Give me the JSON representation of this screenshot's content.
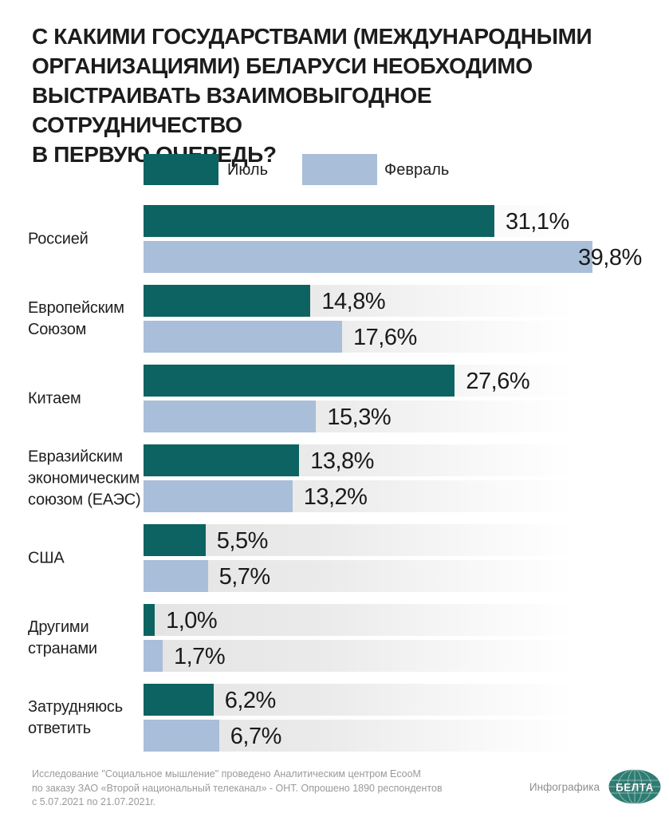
{
  "title": {
    "text": "С КАКИМИ ГОСУДАРСТВАМИ (МЕЖДУНАРОДНЫМИ\nОРГАНИЗАЦИЯМИ) БЕЛАРУСИ НЕОБХОДИМО\nВЫСТРАИВАТЬ ВЗАИМОВЫГОДНОЕ СОТРУДНИЧЕСТВО\nВ ПЕРВУЮ ОЧЕРЕДЬ?"
  },
  "chart_data": {
    "type": "bar",
    "orientation": "horizontal",
    "title": "С КАКИМИ ГОСУДАРСТВАМИ (МЕЖДУНАРОДНЫМИ ОРГАНИЗАЦИЯМИ) БЕЛАРУСИ НЕОБХОДИМО ВЫСТРАИВАТЬ ВЗАИМОВЫГОДНОЕ СОТРУДНИЧЕСТВО В ПЕРВУЮ ОЧЕРЕДЬ?",
    "categories": [
      "Россией",
      "Европейским Союзом",
      "Китаем",
      "Евразийским экономическим союзом (ЕАЭС)",
      "США",
      "Другими странами",
      "Затрудняюсь ответить"
    ],
    "categories_lines": [
      [
        "Россией"
      ],
      [
        "Европейским",
        "Союзом"
      ],
      [
        "Китаем"
      ],
      [
        "Евразийским",
        "экономическим",
        "союзом (ЕАЭС)"
      ],
      [
        "США"
      ],
      [
        "Другими",
        "странами"
      ],
      [
        "Затрудняюсь",
        "ответить"
      ]
    ],
    "series": [
      {
        "name": "Июль",
        "color": "#0d6361",
        "values": [
          31.1,
          14.8,
          27.6,
          13.8,
          5.5,
          1.0,
          6.2
        ],
        "display_values": [
          "31,1%",
          "14,8%",
          "27,6%",
          "13,8%",
          "5,5%",
          "1,0%",
          "6,2%"
        ]
      },
      {
        "name": "Февраль",
        "color": "#a9bed8",
        "values": [
          39.8,
          17.6,
          15.3,
          13.2,
          5.7,
          1.7,
          6.7
        ],
        "display_values": [
          "39,8%",
          "17,6%",
          "15,3%",
          "13,2%",
          "5,7%",
          "1,7%",
          "6,7%"
        ]
      }
    ],
    "value_suffix": "%",
    "axis_max": 41,
    "grid": false,
    "legend_position": "top"
  },
  "footer": {
    "source": "Исследование \"Социальное мышление\" проведено Аналитическим центром EcooM\nпо заказу ЗАО «Второй национальный телеканал» - ОНТ. Опрошено 1890 респондентов\nс 5.07.2021 по 21.07.2021г.",
    "credit": "Инфографика",
    "logo_text": "БЕЛТА"
  },
  "colors": {
    "july_bar": "#0d6361",
    "february_bar": "#a9bed8",
    "logo": "#2e7c73",
    "track_left": "#e4e4e4",
    "title_text": "#1c1c1c",
    "footer_text": "#9a9a9a"
  }
}
